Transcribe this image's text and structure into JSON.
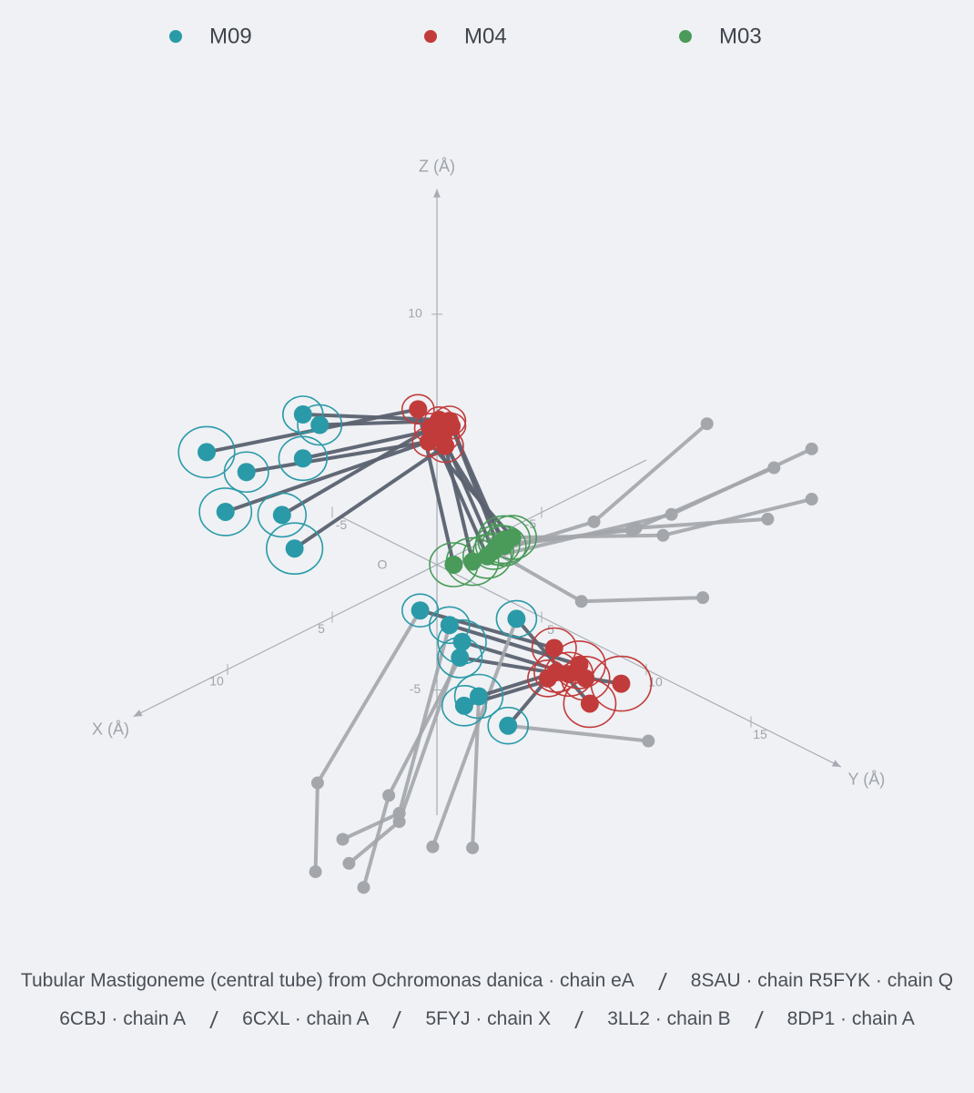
{
  "chart_data": {
    "type": "scatter3d",
    "series": [
      {
        "name": "M09",
        "color": "#2a9aa8"
      },
      {
        "name": "M04",
        "color": "#c23b3b"
      },
      {
        "name": "M03",
        "color": "#4a9a5a"
      }
    ],
    "link_color": "#5b6270",
    "anchor_color": "#a3a6ab",
    "x_label": "X (Å)",
    "y_label": "Y (Å)",
    "z_label": "Z (Å)",
    "origin_label": "O",
    "xlim": [
      -10,
      14.5
    ],
    "ylim": [
      -4.5,
      19.3
    ],
    "zlim": [
      -10,
      15
    ],
    "xticks": [
      -5,
      5,
      10
    ],
    "yticks": [
      -5,
      5,
      10,
      15
    ],
    "zticks": [
      -5,
      10
    ],
    "structures": [
      {
        "name": "Tubular Mastigoneme (central tube) from Ochromonas danica · chain eA",
        "segments": [
          [
            {
              "x": -7.2,
              "y": 5.7,
              "z": 5
            },
            {
              "x": -5.8,
              "y": 1.7,
              "z": 0
            },
            {
              "motif": "M03",
              "x": -0.4,
              "y": 0.4,
              "z": 0,
              "r": 1.2
            },
            {
              "motif": "M04",
              "x": 1.4,
              "y": 0.5,
              "z": 7,
              "r": 0.8
            },
            {
              "motif": "M09",
              "x": 7.3,
              "y": -3.7,
              "z": 6,
              "r": 1.4
            }
          ],
          [
            {
              "motif": "M04",
              "x": -4.8,
              "y": 0.8,
              "z": -5,
              "r": 1.1
            },
            {
              "motif": "M09",
              "x": -2.2,
              "y": -3.0,
              "z": -4,
              "r": 0.9
            },
            {
              "x": 3.7,
              "y": -2.0,
              "z": -8
            },
            {
              "x": 5.6,
              "y": -0.2,
              "z": -10
            }
          ]
        ]
      },
      {
        "name": "8SAU · chain R",
        "segments": [
          [
            {
              "x": -8.5,
              "y": 9.4,
              "z": 5
            },
            {
              "x": -8.0,
              "y": 3.2,
              "z": 0
            },
            {
              "motif": "M03",
              "x": -1.0,
              "y": 0.7,
              "z": 0,
              "r": 1.3
            },
            {
              "motif": "M04",
              "x": 1.4,
              "y": 1.5,
              "z": 7,
              "r": 0.7
            },
            {
              "motif": "M09",
              "x": 3.2,
              "y": -3.2,
              "z": 6,
              "r": 1.0
            }
          ],
          [
            {
              "motif": "M04",
              "x": -4.6,
              "y": 2.2,
              "z": -5,
              "r": 1.3
            },
            {
              "motif": "M09",
              "x": -2.2,
              "y": -1.6,
              "z": -4,
              "r": 1.0
            },
            {
              "x": 3.2,
              "y": 1.4,
              "z": -8
            },
            {
              "x": 3.4,
              "y": -1.1,
              "z": -10
            }
          ]
        ]
      },
      {
        "name": "5FYK · chain Q",
        "segments": [
          [
            {
              "x": -6.7,
              "y": 9.4,
              "z": 5
            },
            {
              "x": -6.3,
              "y": 3.0,
              "z": 0
            },
            {
              "motif": "M03",
              "x": -2.4,
              "y": 0.5,
              "z": 0,
              "r": 1.1
            },
            {
              "motif": "M04",
              "x": 1.2,
              "y": 1.8,
              "z": 7,
              "r": 0.8
            },
            {
              "motif": "M09",
              "x": 3.3,
              "y": -2.3,
              "z": 6,
              "r": 1.1
            }
          ],
          [
            {
              "motif": "M04",
              "x": -4.1,
              "y": 3.0,
              "z": -5,
              "r": 1.2
            },
            {
              "motif": "M09",
              "x": -1.7,
              "y": -0.5,
              "z": -4,
              "r": 1.2
            },
            {
              "x": 3.6,
              "y": 1.8,
              "z": -8
            },
            {
              "x": 4.4,
              "y": 0.2,
              "z": -10
            }
          ]
        ]
      },
      {
        "name": "6CBJ · chain A",
        "segments": [
          [
            {
              "x": -6.1,
              "y": 11.8,
              "z": 5
            },
            {
              "x": -6.8,
              "y": 4.0,
              "z": 0
            },
            {
              "motif": "M03",
              "x": -3.1,
              "y": 0.5,
              "z": 0,
              "r": 1.2
            },
            {
              "motif": "M04",
              "x": 2.7,
              "y": 2.3,
              "z": 7,
              "r": 0.8
            },
            {
              "motif": "M09",
              "x": 7.3,
              "y": -1.8,
              "z": 6,
              "r": 1.1
            }
          ],
          [
            {
              "motif": "M04",
              "x": -4.7,
              "y": 4.1,
              "z": -5,
              "r": 1.5
            },
            {
              "motif": "M09",
              "x": -0.9,
              "y": 0.2,
              "z": -4,
              "r": 1.1
            },
            {
              "x": 2.6,
              "y": 0.3,
              "z": -8
            },
            {
              "x": 5.2,
              "y": 1.7,
              "z": -10
            }
          ]
        ]
      },
      {
        "name": "6CXL · chain A",
        "segments": [
          [
            {
              "x": -4.1,
              "y": 11.7,
              "z": 5
            },
            {
              "x": -6.5,
              "y": 3.0,
              "z": 0
            },
            {
              "motif": "M03",
              "x": -2.5,
              "y": 0.7,
              "z": 0,
              "r": 1.1
            },
            {
              "motif": "M04",
              "x": 1.4,
              "y": 2.1,
              "z": 7,
              "r": 0.7
            },
            {
              "motif": "M09",
              "x": 5.3,
              "y": -1.1,
              "z": 6,
              "r": 1.2
            }
          ],
          [
            {
              "motif": "M04",
              "x": -3.0,
              "y": 4.3,
              "z": -5,
              "r": 1.3
            },
            {
              "motif": "M09",
              "x": -4.1,
              "y": -0.3,
              "z": -4,
              "r": 1.0
            },
            {
              "x": 4.0,
              "y": 3.8,
              "z": -8
            }
          ]
        ]
      },
      {
        "name": "5FYJ · chain X",
        "segments": [
          [
            {
              "x": 1.2,
              "y": 13.9,
              "z": 5
            },
            {
              "x": -1.7,
              "y": 5.2,
              "z": 0
            },
            {
              "motif": "M03",
              "x": -2.0,
              "y": 0.7,
              "z": 0,
              "r": 1.0
            },
            {
              "motif": "M04",
              "x": 2.1,
              "y": 2.4,
              "z": 7,
              "r": 0.8
            },
            {
              "motif": "M09",
              "x": 9.7,
              "y": -0.4,
              "z": 6,
              "r": 1.3
            }
          ],
          [
            {
              "motif": "M04",
              "x": -3.7,
              "y": 2.0,
              "z": -5,
              "r": 1.1
            },
            {
              "motif": "M09",
              "x": 0.5,
              "y": 2.5,
              "z": -4,
              "r": 1.2
            },
            {
              "x": 3.1,
              "y": 4.8,
              "z": -8
            }
          ]
        ]
      },
      {
        "name": "3LL2 · chain B",
        "segments": [
          [
            {
              "motif": "M03",
              "x": -1.6,
              "y": 0.8,
              "z": 0,
              "r": 1.2
            },
            {
              "motif": "M04",
              "x": 2.0,
              "y": 1.7,
              "z": 7,
              "r": 0.8
            },
            {
              "motif": "M09",
              "x": 8.5,
              "y": 1.1,
              "z": 6,
              "r": 1.2
            }
          ],
          [
            {
              "motif": "M04",
              "x": -3.2,
              "y": 2.1,
              "z": -5,
              "r": 1.0
            },
            {
              "motif": "M09",
              "x": 1.2,
              "y": 4.6,
              "z": -4,
              "r": 1.0
            },
            {
              "x": -6.2,
              "y": 3.9,
              "z": -8
            }
          ]
        ]
      },
      {
        "name": "8DP1 · chain A",
        "segments": [
          [
            {
              "motif": "M03",
              "x": -2.8,
              "y": 0.4,
              "z": 0,
              "r": 1.3
            },
            {
              "motif": "M04",
              "x": 2.5,
              "y": 2.9,
              "z": 7,
              "r": 0.9
            },
            {
              "motif": "M09",
              "x": 9.8,
              "y": 3.0,
              "z": 6,
              "r": 1.4
            }
          ],
          [
            {
              "motif": "M04",
              "x": -3.9,
              "y": 2.4,
              "z": -5,
              "r": 1.2
            },
            {
              "motif": "M09",
              "x": 1.3,
              "y": 2.6,
              "z": -4,
              "r": 1.1
            }
          ]
        ]
      }
    ]
  }
}
